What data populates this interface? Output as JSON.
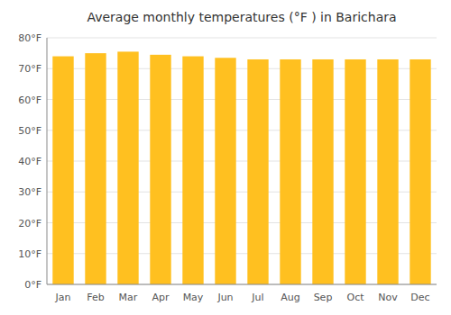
{
  "chart_data": {
    "type": "bar",
    "title": "Average monthly temperatures (°F ) in Barichara",
    "categories": [
      "Jan",
      "Feb",
      "Mar",
      "Apr",
      "May",
      "Jun",
      "Jul",
      "Aug",
      "Sep",
      "Oct",
      "Nov",
      "Dec"
    ],
    "values": [
      74,
      75,
      75.5,
      74.5,
      74,
      73.5,
      73,
      73,
      73,
      73,
      73,
      73
    ],
    "color": "#FFC020",
    "ylim": [
      0,
      80
    ],
    "yticks": [
      {
        "value": 0,
        "label": "0°F"
      },
      {
        "value": 10,
        "label": "10°F"
      },
      {
        "value": 20,
        "label": "20°F"
      },
      {
        "value": 30,
        "label": "30°F"
      },
      {
        "value": 40,
        "label": "40°F"
      },
      {
        "value": 50,
        "label": "50°F"
      },
      {
        "value": 60,
        "label": "60°F"
      },
      {
        "value": 70,
        "label": "70°F"
      },
      {
        "value": 80,
        "label": "80°F"
      }
    ],
    "grid": true
  }
}
